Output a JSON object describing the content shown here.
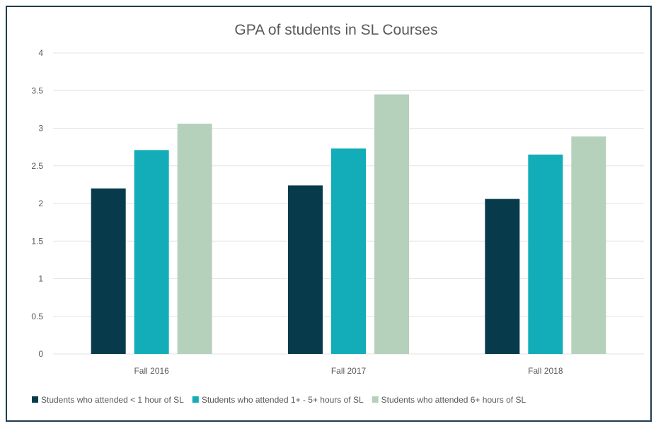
{
  "chart_data": {
    "type": "bar",
    "title": "GPA of students in SL Courses",
    "xlabel": "",
    "ylabel": "",
    "ylim": [
      0,
      4
    ],
    "yticks": [
      "0",
      "0.5",
      "1",
      "1.5",
      "2",
      "2.5",
      "3",
      "3.5",
      "4"
    ],
    "grid": true,
    "legend_position": "bottom",
    "categories": [
      "Fall 2016",
      "Fall 2017",
      "Fall 2018"
    ],
    "series": [
      {
        "name": "Students who attended < 1 hour of SL",
        "values": [
          2.2,
          2.24,
          2.06
        ],
        "color": "#073b4c"
      },
      {
        "name": "Students who attended 1+ - 5+ hours of SL",
        "values": [
          2.71,
          2.73,
          2.65
        ],
        "color": "#12adb8"
      },
      {
        "name": "Students who attended 6+ hours of SL",
        "values": [
          3.06,
          3.45,
          2.89
        ],
        "color": "#b5d1bc"
      }
    ]
  }
}
